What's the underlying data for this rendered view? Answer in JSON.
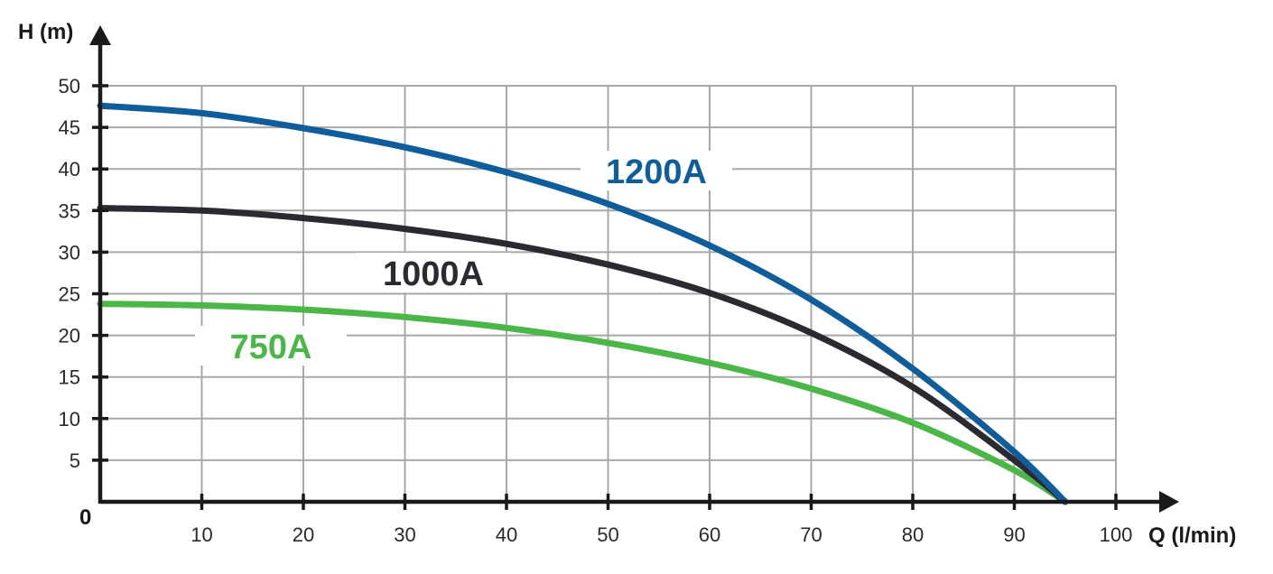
{
  "chart_data": {
    "type": "line",
    "xlabel": "Q (l/min)",
    "ylabel": "H (m)",
    "origin_label": "0",
    "xlim": [
      0,
      100
    ],
    "ylim": [
      0,
      50
    ],
    "xticks": [
      10,
      20,
      30,
      40,
      50,
      60,
      70,
      80,
      90,
      100
    ],
    "yticks": [
      5,
      10,
      15,
      20,
      25,
      30,
      35,
      40,
      45,
      50
    ],
    "grid": true,
    "series": [
      {
        "name": "1200A",
        "color": "#0f5d9a",
        "x": [
          0,
          10,
          20,
          30,
          40,
          50,
          60,
          70,
          80,
          90,
          95
        ],
        "y": [
          47.6,
          46.7,
          44.9,
          42.6,
          39.6,
          35.8,
          30.8,
          24.3,
          16.0,
          6.0,
          0
        ]
      },
      {
        "name": "1000A",
        "color": "#2a2a30",
        "x": [
          0,
          10,
          20,
          30,
          40,
          50,
          60,
          70,
          80,
          90,
          95
        ],
        "y": [
          35.3,
          35.0,
          34.1,
          32.8,
          31.0,
          28.5,
          25.1,
          20.3,
          13.8,
          5.0,
          0
        ]
      },
      {
        "name": "750A",
        "color": "#4bb748",
        "x": [
          0,
          10,
          20,
          30,
          40,
          50,
          60,
          70,
          80,
          90,
          95
        ],
        "y": [
          23.8,
          23.6,
          23.1,
          22.2,
          20.9,
          19.1,
          16.7,
          13.6,
          9.5,
          3.8,
          0
        ]
      }
    ]
  }
}
